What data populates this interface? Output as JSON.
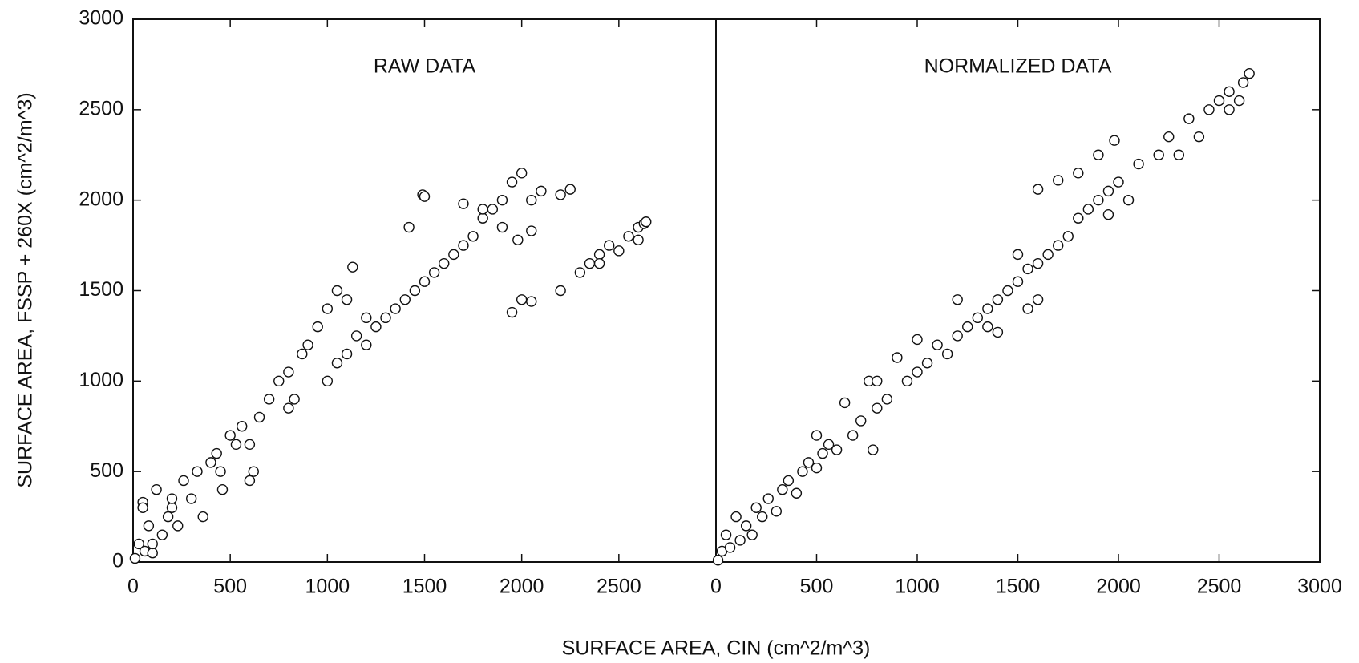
{
  "chart_data": [
    {
      "type": "scatter",
      "title": "RAW DATA",
      "ylabel": "SURFACE AREA, FSSP + 260X  (cm^2/m^3)",
      "xlim": [
        0,
        3000
      ],
      "ylim": [
        0,
        3000
      ],
      "xticks": [
        0,
        500,
        1000,
        1500,
        2000,
        2500
      ],
      "yticks": [
        0,
        500,
        1000,
        1500,
        2000,
        2500,
        3000
      ],
      "x": [
        10,
        30,
        50,
        60,
        80,
        100,
        120,
        150,
        180,
        200,
        230,
        260,
        300,
        330,
        360,
        400,
        430,
        460,
        500,
        530,
        560,
        600,
        620,
        650,
        700,
        750,
        800,
        830,
        870,
        900,
        950,
        1000,
        1050,
        1100,
        1130,
        1150,
        1200,
        1250,
        1300,
        1350,
        1400,
        1450,
        1500,
        1550,
        1600,
        1650,
        1700,
        1750,
        1800,
        1850,
        1900,
        1950,
        2000,
        2050,
        1420,
        1490,
        1100,
        1000,
        1050,
        1200,
        800,
        1950,
        2000,
        2050,
        2100,
        2200,
        2250,
        2300,
        2350,
        2400,
        2450,
        2500,
        2550,
        2600,
        2630,
        2640,
        600,
        450,
        100,
        50,
        200,
        1500,
        1800,
        1700,
        2050,
        1980,
        2200,
        2400,
        2600,
        1900
      ],
      "y": [
        20,
        100,
        330,
        60,
        200,
        50,
        400,
        150,
        250,
        300,
        200,
        450,
        350,
        500,
        250,
        550,
        600,
        400,
        700,
        650,
        750,
        650,
        500,
        800,
        900,
        1000,
        1050,
        900,
        1150,
        1200,
        1300,
        1000,
        1100,
        1150,
        1630,
        1250,
        1200,
        1300,
        1350,
        1400,
        1450,
        1500,
        1550,
        1600,
        1650,
        1700,
        1750,
        1800,
        1900,
        1950,
        2000,
        2100,
        2150,
        2000,
        1850,
        2030,
        1450,
        1400,
        1500,
        1350,
        850,
        1380,
        1450,
        1440,
        2050,
        2030,
        2060,
        1600,
        1650,
        1700,
        1750,
        1720,
        1800,
        1850,
        1870,
        1880,
        450,
        500,
        100,
        300,
        350,
        2020,
        1950,
        1980,
        1830,
        1780,
        1500,
        1650,
        1780,
        1850
      ]
    },
    {
      "type": "scatter",
      "title": "NORMALIZED DATA",
      "xlabel": "SURFACE AREA, CIN (cm^2/m^3)",
      "xlim": [
        0,
        3000
      ],
      "ylim": [
        0,
        3000
      ],
      "xticks": [
        0,
        500,
        1000,
        1500,
        2000,
        2500,
        3000
      ],
      "yticks": [
        0,
        500,
        1000,
        1500,
        2000,
        2500,
        3000
      ],
      "x": [
        10,
        30,
        50,
        70,
        100,
        120,
        150,
        180,
        200,
        230,
        260,
        300,
        330,
        360,
        400,
        430,
        460,
        500,
        530,
        560,
        600,
        640,
        680,
        720,
        760,
        800,
        850,
        900,
        950,
        1000,
        1050,
        1100,
        1150,
        1200,
        1250,
        1300,
        1350,
        1400,
        1450,
        1500,
        1550,
        1600,
        1650,
        1700,
        1750,
        1800,
        1850,
        1900,
        1950,
        2000,
        1600,
        1700,
        1800,
        1900,
        1980,
        2050,
        1950,
        2100,
        2200,
        2300,
        2250,
        2350,
        2400,
        2450,
        2500,
        2550,
        2600,
        2620,
        2650,
        2550,
        1400,
        1550,
        1600,
        1350,
        1000,
        780,
        500,
        800,
        1200,
        1500
      ],
      "y": [
        10,
        60,
        150,
        80,
        250,
        120,
        200,
        150,
        300,
        250,
        350,
        280,
        400,
        450,
        380,
        500,
        550,
        520,
        600,
        650,
        620,
        880,
        700,
        780,
        1000,
        850,
        900,
        1130,
        1000,
        1050,
        1100,
        1200,
        1150,
        1250,
        1300,
        1350,
        1400,
        1450,
        1500,
        1550,
        1620,
        1650,
        1700,
        1750,
        1800,
        1900,
        1950,
        2000,
        2050,
        2100,
        2060,
        2110,
        2150,
        2250,
        2330,
        2000,
        1920,
        2200,
        2250,
        2250,
        2350,
        2450,
        2350,
        2500,
        2550,
        2600,
        2550,
        2650,
        2700,
        2500,
        1270,
        1400,
        1450,
        1300,
        1230,
        620,
        700,
        1000,
        1450,
        1700
      ]
    }
  ]
}
